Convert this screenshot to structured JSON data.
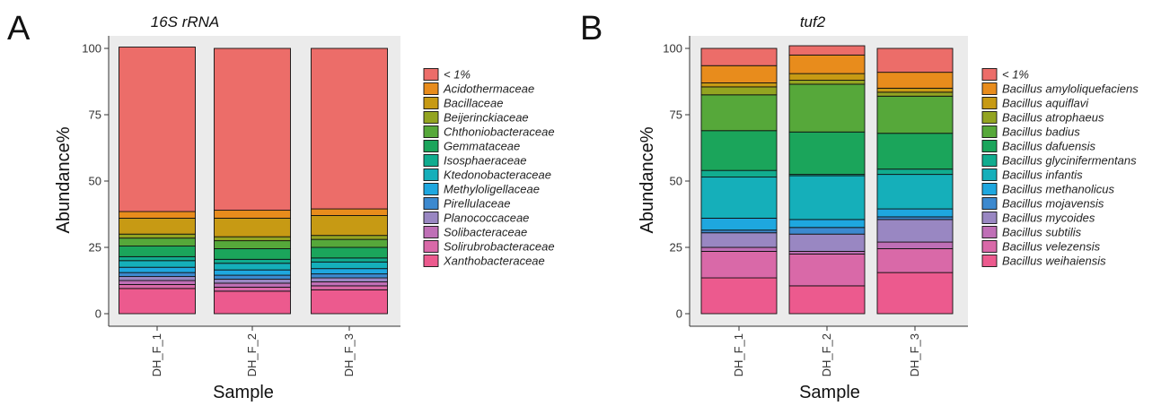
{
  "chart_data": [
    {
      "type": "bar",
      "stacked": true,
      "panel_letter": "A",
      "title": "16S rRNA",
      "xlabel": "Sample",
      "ylabel": "Abundance%",
      "ylim": [
        0,
        100
      ],
      "yticks": [
        "0",
        "25",
        "50",
        "75",
        "100"
      ],
      "categories": [
        "DH_F_1",
        "DH_F_2",
        "DH_F_3"
      ],
      "legend_position": "right",
      "series": [
        {
          "name": "Xanthobacteraceae",
          "color": "#EC5A8E",
          "values": [
            9.5,
            8.5,
            9.0
          ]
        },
        {
          "name": "Solirubrobacteraceae",
          "color": "#D969A8",
          "values": [
            1.5,
            1.5,
            1.5
          ]
        },
        {
          "name": "Solibacteraceae",
          "color": "#BF6FB6",
          "values": [
            1.5,
            1.5,
            1.5
          ]
        },
        {
          "name": "Planococcaceae",
          "color": "#9987C2",
          "values": [
            1.5,
            1.5,
            1.5
          ]
        },
        {
          "name": "Pirellulaceae",
          "color": "#3C89CF",
          "values": [
            1.5,
            1.5,
            1.5
          ]
        },
        {
          "name": "Methyloligellaceae",
          "color": "#1EA7DF",
          "values": [
            2.0,
            2.0,
            2.0
          ]
        },
        {
          "name": "Ktedonobacteraceae",
          "color": "#15AFBA",
          "values": [
            2.5,
            2.5,
            2.5
          ]
        },
        {
          "name": "Isosphaeraceae",
          "color": "#11AC8F",
          "values": [
            1.5,
            1.5,
            1.5
          ]
        },
        {
          "name": "Gemmataceae",
          "color": "#1BA55B",
          "values": [
            4.0,
            4.0,
            4.0
          ]
        },
        {
          "name": "Chthoniobacteraceae",
          "color": "#56A83A",
          "values": [
            3.0,
            3.0,
            3.0
          ]
        },
        {
          "name": "Beijerinckiaceae",
          "color": "#93A421",
          "values": [
            1.5,
            1.5,
            1.5
          ]
        },
        {
          "name": "Bacillaceae",
          "color": "#C79A14",
          "values": [
            6.0,
            7.0,
            7.5
          ]
        },
        {
          "name": "Acidothermaceae",
          "color": "#E88C1C",
          "values": [
            2.5,
            3.0,
            2.5
          ]
        },
        {
          "name": "< 1%",
          "color": "#EC6D69",
          "values": [
            62.0,
            61.0,
            60.5
          ]
        }
      ],
      "legend_order": [
        "< 1%",
        "Acidothermaceae",
        "Bacillaceae",
        "Beijerinckiaceae",
        "Chthoniobacteraceae",
        "Gemmataceae",
        "Isosphaeraceae",
        "Ktedonobacteraceae",
        "Methyloligellaceae",
        "Pirellulaceae",
        "Planococcaceae",
        "Solibacteraceae",
        "Solirubrobacteraceae",
        "Xanthobacteraceae"
      ]
    },
    {
      "type": "bar",
      "stacked": true,
      "panel_letter": "B",
      "title": "tuf2",
      "xlabel": "Sample",
      "ylabel": "Abundance%",
      "ylim": [
        0,
        100
      ],
      "yticks": [
        "0",
        "25",
        "50",
        "75",
        "100"
      ],
      "categories": [
        "DH_F_1",
        "DH_F_2",
        "DH_F_3"
      ],
      "legend_position": "right",
      "series": [
        {
          "name": "Bacillus weihaiensis",
          "color": "#EC5A8E",
          "values": [
            13.5,
            10.5,
            15.5
          ]
        },
        {
          "name": "Bacillus velezensis",
          "color": "#D969A8",
          "values": [
            10.0,
            12.0,
            9.0
          ]
        },
        {
          "name": "Bacillus subtilis",
          "color": "#BF6FB6",
          "values": [
            1.5,
            1.0,
            2.5
          ]
        },
        {
          "name": "Bacillus mycoides",
          "color": "#9987C2",
          "values": [
            5.5,
            6.5,
            8.5
          ]
        },
        {
          "name": "Bacillus mojavensis",
          "color": "#3C89CF",
          "values": [
            1.0,
            2.5,
            1.0
          ]
        },
        {
          "name": "Bacillus methanolicus",
          "color": "#1EA7DF",
          "values": [
            4.5,
            3.0,
            3.0
          ]
        },
        {
          "name": "Bacillus infantis",
          "color": "#15AFBA",
          "values": [
            15.5,
            16.5,
            13.0
          ]
        },
        {
          "name": "Bacillus glycinifermentans",
          "color": "#11AC8F",
          "values": [
            2.5,
            0.5,
            2.0
          ]
        },
        {
          "name": "Bacillus dafuensis",
          "color": "#1BA55B",
          "values": [
            15.0,
            16.0,
            13.5
          ]
        },
        {
          "name": "Bacillus badius",
          "color": "#56A83A",
          "values": [
            13.5,
            18.0,
            14.0
          ]
        },
        {
          "name": "Bacillus atrophaeus",
          "color": "#93A421",
          "values": [
            3.0,
            1.5,
            1.5
          ]
        },
        {
          "name": "Bacillus aquiflavi",
          "color": "#C79A14",
          "values": [
            1.5,
            2.5,
            1.5
          ]
        },
        {
          "name": "Bacillus amyloliquefaciens",
          "color": "#E88C1C",
          "values": [
            6.5,
            7.0,
            6.0
          ]
        },
        {
          "name": "< 1%",
          "color": "#EC6D69",
          "values": [
            6.5,
            3.5,
            9.0
          ]
        }
      ],
      "legend_order": [
        "< 1%",
        "Bacillus amyloliquefaciens",
        "Bacillus aquiflavi",
        "Bacillus atrophaeus",
        "Bacillus badius",
        "Bacillus dafuensis",
        "Bacillus glycinifermentans",
        "Bacillus infantis",
        "Bacillus methanolicus",
        "Bacillus mojavensis",
        "Bacillus mycoides",
        "Bacillus subtilis",
        "Bacillus velezensis",
        "Bacillus weihaiensis"
      ]
    }
  ]
}
